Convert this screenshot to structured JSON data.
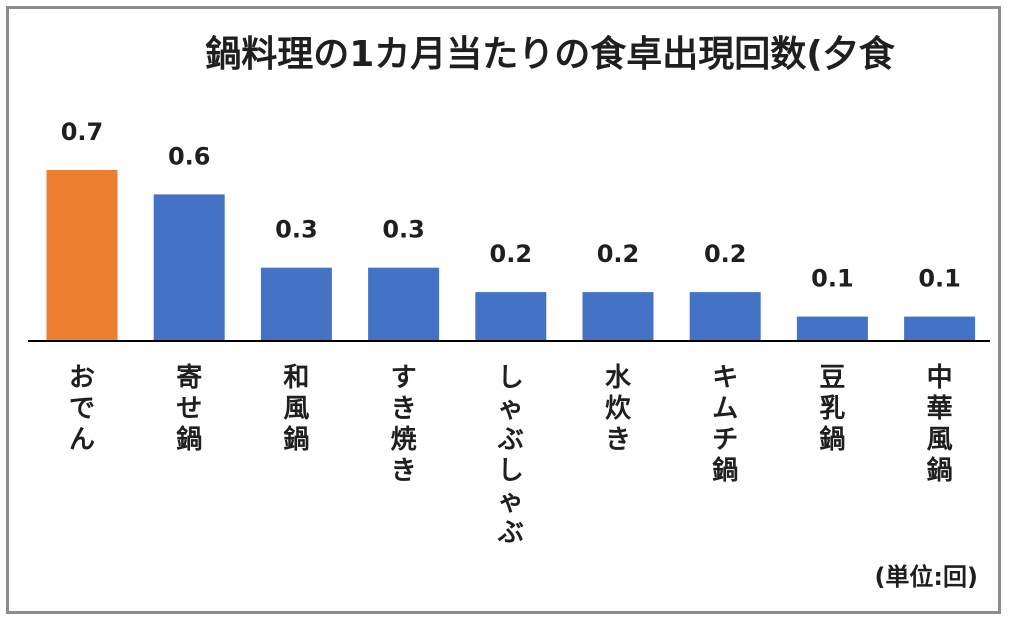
{
  "chart_data": {
    "type": "bar",
    "title": "鍋料理の1カ月当たりの食卓出現回数(夕食",
    "unit_label": "(単位:回)",
    "categories": [
      "おでん",
      "寄せ鍋",
      "和風鍋",
      "すき焼き",
      "しゃぶしゃぶ",
      "水炊き",
      "キムチ鍋",
      "豆乳鍋",
      "中華風鍋"
    ],
    "values": [
      0.7,
      0.6,
      0.3,
      0.3,
      0.2,
      0.2,
      0.2,
      0.1,
      0.1
    ],
    "value_labels": [
      "0.7",
      "0.6",
      "0.3",
      "0.3",
      "0.2",
      "0.2",
      "0.2",
      "0.1",
      "0.1"
    ],
    "ylim": [
      0,
      0.7
    ],
    "grid": false,
    "legend": "none",
    "colors": {
      "default_bar": "#4472c4",
      "highlight_bar": "#ed7d31",
      "axis": "#000000",
      "frame": "#8c8c8c"
    },
    "highlight_index": 0
  }
}
